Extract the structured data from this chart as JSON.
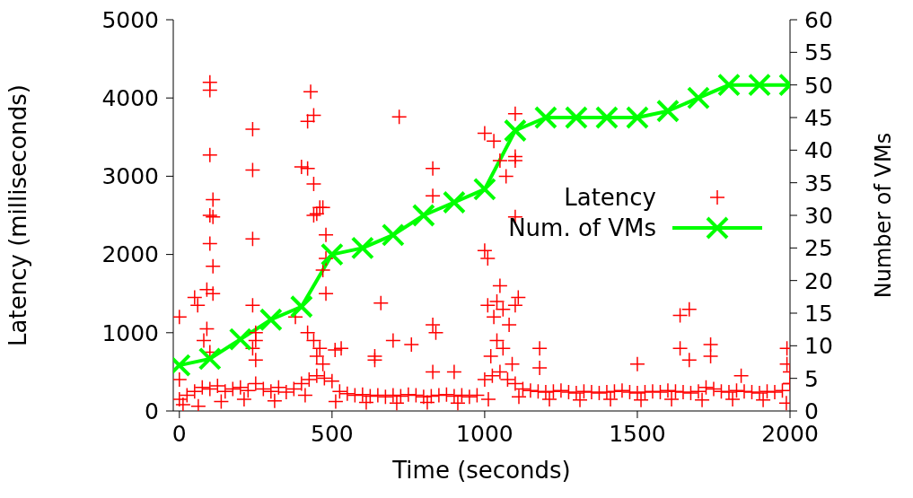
{
  "chart_data": {
    "type": "scatter",
    "xlabel": "Time (seconds)",
    "ylabel": "Latency (milliseconds)",
    "y2label": "Number of VMs",
    "xlim": [
      -20,
      2000
    ],
    "xticks": [
      0,
      500,
      1000,
      1500,
      2000
    ],
    "ylim": [
      0,
      5000
    ],
    "yticks": [
      0,
      1000,
      2000,
      3000,
      4000,
      5000
    ],
    "y2lim": [
      0,
      60
    ],
    "y2ticks": [
      0,
      5,
      10,
      15,
      20,
      25,
      30,
      35,
      40,
      45,
      50,
      55,
      60
    ],
    "legend": "right",
    "line_style": "solid",
    "series": [
      {
        "name": "Latency",
        "marker": "cross",
        "color": "#ff0000",
        "x": [
          0,
          0,
          50,
          60,
          90,
          100,
          100,
          100,
          110,
          100,
          110,
          100,
          110,
          110,
          90,
          80,
          100,
          240,
          240,
          240,
          240,
          250,
          250,
          240,
          250,
          380,
          400,
          420,
          440,
          450,
          460,
          470,
          440,
          480,
          480,
          470,
          480,
          420,
          440,
          460,
          510,
          430,
          440,
          420,
          450,
          470,
          530,
          640,
          640,
          660,
          720,
          700,
          760,
          830,
          830,
          830,
          840,
          830,
          900,
          1000,
          1030,
          1050,
          1070,
          1000,
          1010,
          1050,
          1040,
          1010,
          1060,
          1030,
          1080,
          1040,
          1060,
          1020,
          1090,
          1100,
          1100,
          1100,
          1100,
          1110,
          1100,
          1180,
          1180,
          1500,
          1640,
          1640,
          1670,
          1670,
          1740,
          1740,
          1840,
          1990,
          1990,
          2000,
          2000,
          0,
          25,
          50,
          75,
          100,
          125,
          150,
          175,
          200,
          225,
          250,
          275,
          300,
          325,
          350,
          375,
          400,
          425,
          450,
          475,
          500,
          525,
          550,
          575,
          600,
          625,
          650,
          675,
          700,
          725,
          750,
          775,
          800,
          825,
          850,
          875,
          900,
          925,
          950,
          975,
          1000,
          1025,
          1050,
          1075,
          1100,
          1125,
          1150,
          1175,
          1200,
          1225,
          1250,
          1275,
          1300,
          1325,
          1350,
          1375,
          1400,
          1425,
          1450,
          1475,
          1500,
          1525,
          1550,
          1575,
          1600,
          1625,
          1650,
          1675,
          1700,
          1725,
          1750,
          1775,
          1800,
          1825,
          1850,
          1875,
          1900,
          1925,
          1950,
          1975,
          2000,
          12,
          62,
          137,
          212,
          312,
          412,
          512,
          612,
          712,
          812,
          912,
          1012,
          1112,
          1212,
          1312,
          1412,
          1512,
          1612,
          1712,
          1812,
          1912,
          1988
        ],
        "values": [
          1200,
          400,
          1450,
          1350,
          1550,
          4200,
          4100,
          3270,
          2700,
          2500,
          2480,
          2140,
          1850,
          1500,
          1050,
          900,
          750,
          3600,
          3080,
          2200,
          1350,
          1000,
          900,
          800,
          650,
          1200,
          3120,
          3100,
          2900,
          2520,
          2600,
          2600,
          2500,
          2250,
          1950,
          1800,
          1500,
          1000,
          900,
          800,
          780,
          4080,
          3780,
          3700,
          700,
          600,
          800,
          650,
          700,
          1380,
          3760,
          900,
          850,
          3100,
          2750,
          1100,
          1000,
          500,
          500,
          3550,
          3450,
          3200,
          3000,
          2050,
          1950,
          1600,
          1400,
          1350,
          1300,
          1200,
          1100,
          900,
          800,
          700,
          600,
          3800,
          3250,
          3200,
          2480,
          1450,
          1350,
          800,
          550,
          600,
          1220,
          800,
          1300,
          650,
          850,
          700,
          450,
          800,
          600,
          500,
          350,
          150,
          200,
          250,
          300,
          280,
          320,
          250,
          280,
          300,
          260,
          350,
          280,
          250,
          300,
          240,
          280,
          350,
          400,
          450,
          420,
          380,
          250,
          220,
          200,
          210,
          190,
          200,
          180,
          200,
          190,
          210,
          200,
          180,
          190,
          200,
          210,
          190,
          200,
          180,
          200,
          400,
          450,
          500,
          400,
          350,
          280,
          260,
          250,
          240,
          250,
          260,
          240,
          230,
          250,
          240,
          230,
          240,
          250,
          260,
          240,
          230,
          240,
          250,
          240,
          260,
          250,
          240,
          230,
          250,
          300,
          280,
          250,
          240,
          260,
          250,
          240,
          230,
          250,
          240,
          260,
          350,
          80,
          60,
          120,
          150,
          130,
          200,
          120,
          110,
          100,
          110,
          100,
          150,
          180,
          150,
          140,
          150,
          140,
          150,
          140,
          150,
          140,
          100
        ]
      },
      {
        "name": "Num. of VMs",
        "type": "line",
        "axis": "y2",
        "marker": "cross",
        "color": "#00ff00",
        "x": [
          0,
          100,
          200,
          300,
          400,
          500,
          600,
          700,
          800,
          900,
          1000,
          1100,
          1200,
          1300,
          1400,
          1500,
          1600,
          1700,
          1800,
          1900,
          2000
        ],
        "values": [
          7,
          8,
          11,
          14,
          16,
          24,
          25,
          27,
          30,
          32,
          34,
          43,
          45,
          45,
          45,
          45,
          46,
          48,
          50,
          50,
          50
        ]
      }
    ]
  }
}
